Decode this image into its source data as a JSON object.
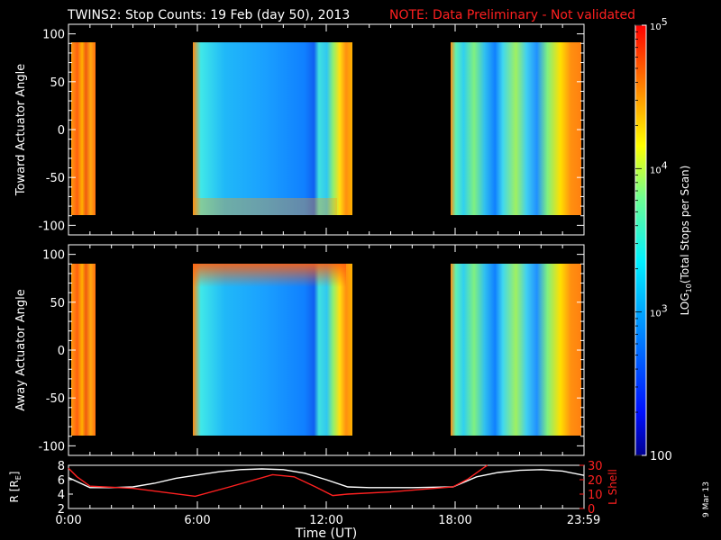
{
  "header": {
    "title": "TWINS2: Stop Counts: 19 Feb (day  50), 2013",
    "note": "NOTE: Data Preliminary - Not validated"
  },
  "colors": {
    "background": "#000000",
    "text": "#ffffff",
    "note": "#ff2020",
    "r_line": "#ffffff",
    "lshell_line": "#ff2020"
  },
  "chart_data": [
    {
      "type": "heatmap",
      "name_printed": "",
      "ylabel": "Toward Actuator Angle",
      "ylim": [
        -110,
        110
      ],
      "y_ticks": [
        100,
        50,
        0,
        -50,
        -100
      ],
      "y_tick_labels": [
        "100",
        "50",
        "0",
        "-50",
        "-100"
      ],
      "xlim_hours": [
        0,
        24
      ],
      "data_segments_hours": [
        [
          0.0,
          1.05
        ],
        [
          5.8,
          13.3
        ],
        [
          17.9,
          24.0
        ]
      ],
      "angle_range": [
        -90,
        90
      ],
      "value_units": "counts",
      "grid": false
    },
    {
      "type": "heatmap",
      "ylabel": "Away Actuator Angle",
      "ylim": [
        -110,
        110
      ],
      "y_ticks": [
        100,
        50,
        0,
        -50,
        -100
      ],
      "y_tick_labels": [
        "100",
        "50",
        "0",
        "-50",
        "-100"
      ],
      "xlim_hours": [
        0,
        24
      ],
      "data_segments_hours": [
        [
          0.0,
          1.05
        ],
        [
          5.8,
          13.3
        ],
        [
          17.9,
          24.0
        ]
      ],
      "angle_range": [
        -90,
        90
      ],
      "value_units": "counts",
      "grid": false
    },
    {
      "type": "line",
      "ylabel": "R [R",
      "ylabel_sub": "E",
      "ylabel_end": "]",
      "ylim": [
        2,
        8
      ],
      "y_ticks": [
        8,
        6,
        4,
        2
      ],
      "y_tick_labels": [
        "8",
        "6",
        "4",
        "2"
      ],
      "y2label": "L Shell",
      "y2lim": [
        0,
        30
      ],
      "y2_ticks": [
        30,
        20,
        10,
        0
      ],
      "y2_tick_labels": [
        "30",
        "20",
        "10",
        "0"
      ],
      "xlabel": "Time (UT)",
      "x_ticks": [
        0,
        6,
        12,
        18,
        23.983
      ],
      "x_tick_labels": [
        "0:00",
        "6:00",
        "12:00",
        "18:00",
        "23:59"
      ],
      "xlim": [
        0,
        24
      ],
      "series": [
        {
          "axis": "left",
          "color": "#ffffff",
          "x": [
            0,
            0.5,
            1.0,
            2.0,
            3.0,
            4.0,
            5.0,
            5.9,
            7.0,
            8.0,
            9.0,
            10.0,
            11.0,
            12.0,
            13.0,
            14.0,
            16.0,
            17.9,
            19.0,
            20.0,
            21.0,
            22.0,
            23.0,
            24.0
          ],
          "y": [
            6.3,
            5.6,
            4.9,
            4.9,
            5.0,
            5.5,
            6.2,
            6.6,
            7.1,
            7.4,
            7.5,
            7.4,
            6.9,
            6.0,
            5.0,
            4.9,
            4.9,
            5.0,
            6.4,
            7.0,
            7.3,
            7.4,
            7.2,
            6.6
          ]
        },
        {
          "axis": "right",
          "color": "#ff2020",
          "x": [
            0,
            0.4,
            1.0,
            3.0,
            5.9,
            7.5,
            9.5,
            10.5,
            11.5,
            12.3,
            13.0,
            15.0,
            17.9,
            18.6,
            19.3,
            19.5
          ],
          "y": [
            28.0,
            22.0,
            15.5,
            14.0,
            8.5,
            15.0,
            23.5,
            22.0,
            15.0,
            9.0,
            10.0,
            11.5,
            15.0,
            20.5,
            28.0,
            30.0
          ]
        }
      ],
      "grid": false
    }
  ],
  "colorbar": {
    "label_pre": "LOG",
    "label_sub": "10",
    "label_post": "(Total Stops per Scan)",
    "scale": "log",
    "range": [
      100,
      100000
    ],
    "ticks": [
      {
        "value": 100000,
        "base": "10",
        "exp": "5"
      },
      {
        "value": 10000,
        "base": "10",
        "exp": "4"
      },
      {
        "value": 1000,
        "base": "10",
        "exp": "3"
      },
      {
        "value": 100,
        "text": "100"
      }
    ]
  },
  "footer": {
    "date_stamp": "9 Mar 13"
  }
}
